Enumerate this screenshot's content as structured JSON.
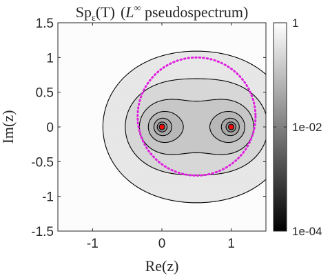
{
  "chart_data": {
    "type": "contour",
    "title": {
      "prefix": "Sp",
      "subscript": "ε",
      "arg": "(T)",
      "open": "(",
      "norm_base": "L",
      "norm_sup": "∞",
      "rest": " pseudospectrum)"
    },
    "xlabel": "Re(z)",
    "ylabel": "Im(z)",
    "xlim": [
      -1.5,
      1.5
    ],
    "ylim": [
      -1.5,
      1.5
    ],
    "xticks": [
      -1,
      0,
      1
    ],
    "xtick_labels": [
      "-1",
      "0",
      "1"
    ],
    "yticks": [
      1.5,
      1,
      0.5,
      0,
      -0.5,
      -1,
      -1.5
    ],
    "ytick_labels": [
      "1.5",
      "1",
      "0.5",
      "0",
      "-0.5",
      "-1",
      "-1.5"
    ],
    "eigenvalues": [
      {
        "re": 0,
        "im": 0
      },
      {
        "re": 1,
        "im": 0
      }
    ],
    "contour_levels_log10": [
      -3.5,
      -3,
      -2.5,
      -2,
      -1.75,
      -1.5,
      -1.25,
      -1,
      -0.75,
      -0.5,
      -0.25
    ],
    "dotted_circle": {
      "center_re": 0.5,
      "center_im": 0.15,
      "radius": 0.85,
      "color": "#e020e0"
    },
    "colorbar": {
      "scale": "log",
      "min": 0.0001,
      "max": 1,
      "tick_labels": [
        "1",
        "1e-02",
        "1e-04"
      ],
      "colors": [
        "#000000",
        "#ffffff"
      ]
    },
    "eigen_marker_color": "#ff0000",
    "contour_color": "#000000"
  }
}
